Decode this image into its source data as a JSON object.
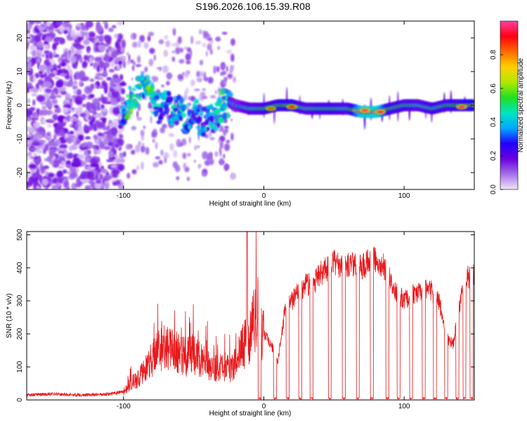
{
  "title": "S196.2026.106.15.39.R08",
  "colors": {
    "snr_line": "#e8191c",
    "frame": "#000000"
  },
  "chart_data": [
    {
      "type": "heatmap",
      "xlabel": "Height of straight line (km)",
      "ylabel": "Frequency (Hz)",
      "xlim": [
        -169,
        150
      ],
      "ylim": [
        -25,
        25
      ],
      "xticks": [
        -100,
        0,
        100
      ],
      "xtick_labels": [
        "-100",
        "0",
        "100"
      ],
      "yticks": [
        -20,
        -10,
        0,
        10,
        20
      ],
      "ytick_labels": [
        "-20",
        "-10",
        "0",
        "10",
        "20"
      ],
      "noise_region": [
        -169,
        -100
      ],
      "ridge": {
        "x": [
          -100,
          -95,
          -90,
          -85,
          -80,
          -75,
          -70,
          -65,
          -60,
          -55,
          -50,
          -45,
          -40,
          -35,
          -30,
          -25,
          -20,
          -10,
          0,
          10,
          20,
          30,
          40,
          50,
          60,
          70,
          80,
          90,
          100,
          110,
          120,
          130,
          140,
          150
        ],
        "freq": [
          -2,
          1,
          4,
          7,
          3,
          -2,
          2,
          -3,
          -1,
          -6,
          -2,
          -5,
          -4,
          -4,
          0,
          1,
          0,
          -1,
          -1,
          0,
          0,
          -1,
          -1,
          -1,
          -1,
          -2,
          -2,
          -1,
          0,
          0,
          -1,
          0,
          0,
          0
        ],
        "amplitude": [
          0.35,
          0.45,
          0.5,
          0.4,
          0.5,
          0.35,
          0.3,
          0.35,
          0.3,
          0.35,
          0.3,
          0.35,
          0.3,
          0.3,
          0.45,
          0.4,
          0.35,
          0.45,
          0.5,
          0.55,
          0.55,
          0.45,
          0.5,
          0.5,
          0.45,
          0.92,
          0.95,
          0.5,
          0.5,
          0.45,
          0.5,
          0.5,
          0.55,
          0.6
        ],
        "hotspots": [
          {
            "x": 5,
            "freq": -1,
            "amplitude": 0.85
          },
          {
            "x": 20,
            "freq": -0.5,
            "amplitude": 0.9
          },
          {
            "x": 72,
            "freq": -1.5,
            "amplitude": 0.97
          },
          {
            "x": 83,
            "freq": -2,
            "amplitude": 0.95
          },
          {
            "x": 141,
            "freq": -0.5,
            "amplitude": 0.95
          }
        ]
      },
      "colorbar": {
        "label": "Normalized spectral amplitude",
        "range": [
          0,
          1
        ],
        "ticks": [
          0.0,
          0.2,
          0.4,
          0.6,
          0.8
        ],
        "tick_labels": [
          "0.0",
          "0.2",
          "0.4",
          "0.6",
          "0.8"
        ],
        "colors": [
          "#f2e6fb",
          "#a470e8",
          "#6a00e0",
          "#2000ff",
          "#00a8ff",
          "#00e5c0",
          "#20e020",
          "#b0e800",
          "#ffd000",
          "#ff6a00",
          "#ff0010",
          "#ff40a0"
        ]
      }
    },
    {
      "type": "line",
      "xlabel": "Height of straight line (km)",
      "ylabel": "SNR (10 * v/v)",
      "xlim": [
        -169,
        150
      ],
      "ylim": [
        0,
        510
      ],
      "xticks": [
        -100,
        0,
        100
      ],
      "xtick_labels": [
        "-100",
        "0",
        "100"
      ],
      "yticks": [
        0,
        100,
        200,
        300,
        400,
        500
      ],
      "ytick_labels": [
        "0",
        "100",
        "200",
        "300",
        "400",
        "500"
      ],
      "series": [
        {
          "name": "SNR",
          "x": [
            -169,
            -150,
            -130,
            -110,
            -100,
            -95,
            -90,
            -85,
            -80,
            -75,
            -70,
            -65,
            -60,
            -55,
            -50,
            -45,
            -40,
            -35,
            -30,
            -25,
            -20,
            -15,
            -10,
            -5,
            0,
            5,
            10,
            15,
            20,
            25,
            30,
            35,
            40,
            45,
            50,
            55,
            60,
            65,
            70,
            75,
            80,
            85,
            90,
            95,
            100,
            105,
            110,
            115,
            120,
            125,
            130,
            135,
            140,
            145,
            150
          ],
          "values": [
            15,
            18,
            15,
            18,
            25,
            50,
            60,
            90,
            120,
            150,
            170,
            150,
            140,
            130,
            140,
            120,
            110,
            95,
            110,
            90,
            110,
            160,
            190,
            270,
            200,
            170,
            120,
            270,
            300,
            330,
            350,
            350,
            380,
            400,
            420,
            400,
            410,
            405,
            405,
            420,
            430,
            410,
            360,
            320,
            305,
            315,
            330,
            340,
            330,
            300,
            190,
            170,
            300,
            370,
            380
          ],
          "dropouts": [
            -3,
            8,
            17,
            26,
            34,
            47,
            57,
            67,
            77,
            88,
            96,
            105,
            114,
            122,
            130,
            138,
            143,
            148
          ]
        }
      ]
    }
  ]
}
